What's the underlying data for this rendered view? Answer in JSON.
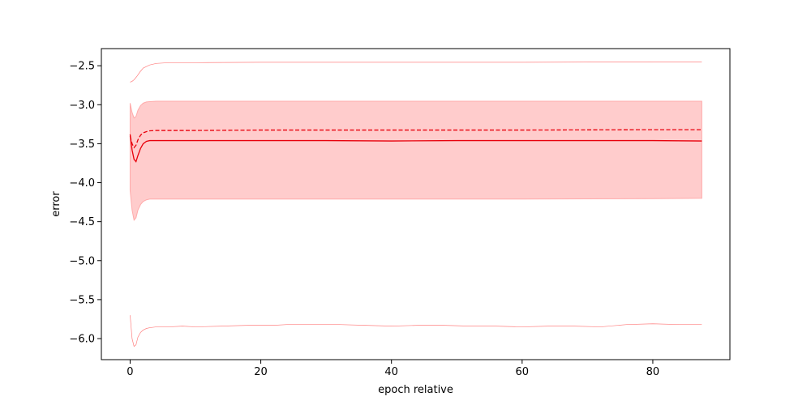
{
  "chart_data": {
    "type": "area",
    "title": "",
    "xlabel": "epoch relative",
    "ylabel": "error",
    "xlim": [
      -4.4,
      91.8
    ],
    "ylim": [
      -6.27,
      -2.28
    ],
    "xticks": [
      0,
      20,
      40,
      60,
      80
    ],
    "xtick_labels": [
      "0",
      "20",
      "40",
      "60",
      "80"
    ],
    "yticks": [
      -2.5,
      -3.0,
      -3.5,
      -4.0,
      -4.5,
      -5.0,
      -5.5,
      -6.0
    ],
    "ytick_labels": [
      "−2.5",
      "−3.0",
      "−3.5",
      "−4.0",
      "−4.5",
      "−5.0",
      "−5.5",
      "−6.0"
    ],
    "grid": false,
    "legend": "none",
    "colors": {
      "primary": "#e8000b",
      "band_fill": "#ffcccc",
      "band_edge": "#ffaaaa",
      "extreme": "#ff8080"
    },
    "series": [
      {
        "style": "solid",
        "x": [
          0,
          0.3,
          0.6,
          0.9,
          1.2,
          1.6,
          2.0,
          2.5,
          3.0,
          4,
          5,
          6,
          8,
          10,
          20,
          30,
          40,
          50,
          60,
          70,
          80,
          87.5
        ],
        "values": [
          -3.38,
          -3.58,
          -3.7,
          -3.73,
          -3.65,
          -3.56,
          -3.5,
          -3.47,
          -3.46,
          -3.46,
          -3.46,
          -3.46,
          -3.46,
          -3.46,
          -3.46,
          -3.46,
          -3.465,
          -3.46,
          -3.46,
          -3.46,
          -3.46,
          -3.465
        ]
      },
      {
        "style": "dashed",
        "x": [
          0,
          0.3,
          0.6,
          0.9,
          1.2,
          1.6,
          2.0,
          2.5,
          3.0,
          4,
          5,
          8,
          10,
          20,
          40,
          60,
          80,
          87.5
        ],
        "values": [
          -3.4,
          -3.5,
          -3.55,
          -3.52,
          -3.45,
          -3.39,
          -3.36,
          -3.345,
          -3.335,
          -3.33,
          -3.33,
          -3.33,
          -3.33,
          -3.325,
          -3.325,
          -3.325,
          -3.32,
          -3.32
        ]
      }
    ],
    "band": {
      "x": [
        0,
        0.3,
        0.6,
        0.9,
        1.2,
        1.6,
        2.0,
        2.5,
        3.0,
        4,
        5,
        8,
        10,
        20,
        40,
        60,
        80,
        87.5
      ],
      "upper": [
        -2.98,
        -3.1,
        -3.17,
        -3.15,
        -3.07,
        -3.01,
        -2.98,
        -2.965,
        -2.96,
        -2.955,
        -2.955,
        -2.955,
        -2.955,
        -2.955,
        -2.955,
        -2.955,
        -2.955,
        -2.955
      ],
      "lower": [
        -4.1,
        -4.35,
        -4.48,
        -4.45,
        -4.35,
        -4.28,
        -4.24,
        -4.22,
        -4.21,
        -4.21,
        -4.21,
        -4.21,
        -4.21,
        -4.21,
        -4.21,
        -4.21,
        -4.205,
        -4.2
      ]
    },
    "extremes": {
      "max": {
        "x": [
          0,
          0.3,
          0.6,
          1.0,
          1.5,
          2,
          3,
          4,
          5,
          6,
          8,
          10,
          20,
          40,
          60,
          80,
          87.5
        ],
        "values": [
          -2.71,
          -2.7,
          -2.68,
          -2.64,
          -2.58,
          -2.53,
          -2.49,
          -2.47,
          -2.465,
          -2.46,
          -2.46,
          -2.46,
          -2.455,
          -2.455,
          -2.455,
          -2.45,
          -2.45
        ]
      },
      "min": {
        "x": [
          0,
          0.3,
          0.6,
          0.9,
          1.2,
          1.6,
          2.0,
          2.5,
          3,
          4,
          6,
          8,
          10,
          14,
          18,
          22,
          24,
          28,
          32,
          36,
          40,
          44,
          48,
          52,
          56,
          60,
          64,
          68,
          72,
          76,
          80,
          84,
          87.5
        ],
        "values": [
          -5.7,
          -6.0,
          -6.1,
          -6.08,
          -5.98,
          -5.92,
          -5.89,
          -5.87,
          -5.86,
          -5.85,
          -5.85,
          -5.84,
          -5.85,
          -5.84,
          -5.83,
          -5.83,
          -5.82,
          -5.82,
          -5.82,
          -5.83,
          -5.84,
          -5.83,
          -5.83,
          -5.84,
          -5.84,
          -5.85,
          -5.84,
          -5.84,
          -5.85,
          -5.82,
          -5.81,
          -5.82,
          -5.82
        ]
      }
    }
  }
}
